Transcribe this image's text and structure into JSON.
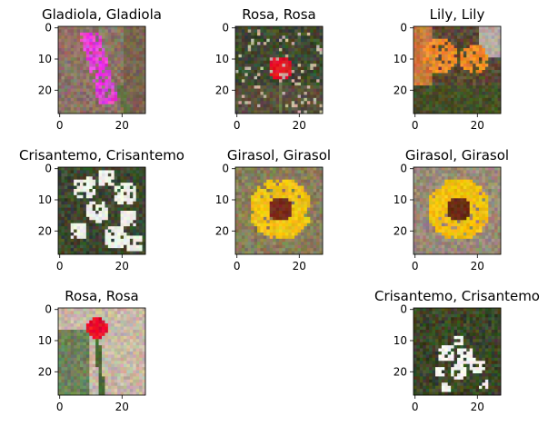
{
  "chart_data": [
    {
      "type": "image",
      "title": "Gladiola, Gladiola",
      "x_ticks": [
        0,
        20
      ],
      "y_ticks": [
        0,
        10,
        20
      ],
      "xlim": [
        -0.5,
        27.5
      ],
      "ylim": [
        27.5,
        -0.5
      ],
      "flower": "gladiola",
      "colors": {
        "bg": "#8a7466",
        "flower": "#e23fd6",
        "stem": "#5e7040"
      }
    },
    {
      "type": "image",
      "title": "Rosa, Rosa",
      "x_ticks": [
        0,
        20
      ],
      "y_ticks": [
        0,
        10,
        20
      ],
      "xlim": [
        -0.5,
        27.5
      ],
      "ylim": [
        27.5,
        -0.5
      ],
      "flower": "rose",
      "colors": {
        "bg": "#3f4a2f",
        "flower": "#e01228",
        "stem": "#6a7a4a"
      }
    },
    {
      "type": "image",
      "title": "Lily, Lily",
      "x_ticks": [
        0,
        20
      ],
      "y_ticks": [
        0,
        10,
        20
      ],
      "xlim": [
        -0.5,
        27.5
      ],
      "ylim": [
        27.5,
        -0.5
      ],
      "flower": "lily",
      "colors": {
        "bg": "#5a4a32",
        "flower": "#f08a28",
        "stem": "#4e6030"
      }
    },
    {
      "type": "image",
      "title": "Crisantemo, Crisantemo",
      "x_ticks": [
        0,
        20
      ],
      "y_ticks": [
        0,
        10,
        20
      ],
      "xlim": [
        -0.5,
        27.5
      ],
      "ylim": [
        27.5,
        -0.5
      ],
      "flower": "chrysanthemum",
      "colors": {
        "bg": "#3e4830",
        "flower": "#eef0e8",
        "stem": "#5a6a40"
      }
    },
    {
      "type": "image",
      "title": "Girasol, Girasol",
      "x_ticks": [
        0,
        20
      ],
      "y_ticks": [
        0,
        10,
        20
      ],
      "xlim": [
        -0.5,
        27.5
      ],
      "ylim": [
        27.5,
        -0.5
      ],
      "flower": "sunflower",
      "colors": {
        "bg": "#8a7f5a",
        "flower": "#f0c414",
        "center": "#7a2a1a"
      }
    },
    {
      "type": "image",
      "title": "Girasol, Girasol",
      "x_ticks": [
        0,
        20
      ],
      "y_ticks": [
        0,
        10,
        20
      ],
      "xlim": [
        -0.5,
        27.5
      ],
      "ylim": [
        27.5,
        -0.5
      ],
      "flower": "sunflower",
      "colors": {
        "bg": "#9a8a78",
        "flower": "#f2c010",
        "center": "#6a2a14"
      }
    },
    {
      "type": "image",
      "title": "Rosa, Rosa",
      "x_ticks": [
        0,
        20
      ],
      "y_ticks": [
        0,
        10,
        20
      ],
      "xlim": [
        -0.5,
        27.5
      ],
      "ylim": [
        27.5,
        -0.5
      ],
      "flower": "rose_single",
      "colors": {
        "bg": "#c8b8a6",
        "flower": "#e8102a",
        "stem": "#4a6a36"
      }
    },
    {
      "type": "image",
      "title": "Crisantemo, Crisantemo",
      "x_ticks": [
        0,
        20
      ],
      "y_ticks": [
        0,
        10,
        20
      ],
      "xlim": [
        -0.5,
        27.5
      ],
      "ylim": [
        27.5,
        -0.5
      ],
      "flower": "chrysanthemum_small",
      "colors": {
        "bg": "#3c4628",
        "flower": "#f4f4f0",
        "stem": "#56663a"
      }
    }
  ]
}
